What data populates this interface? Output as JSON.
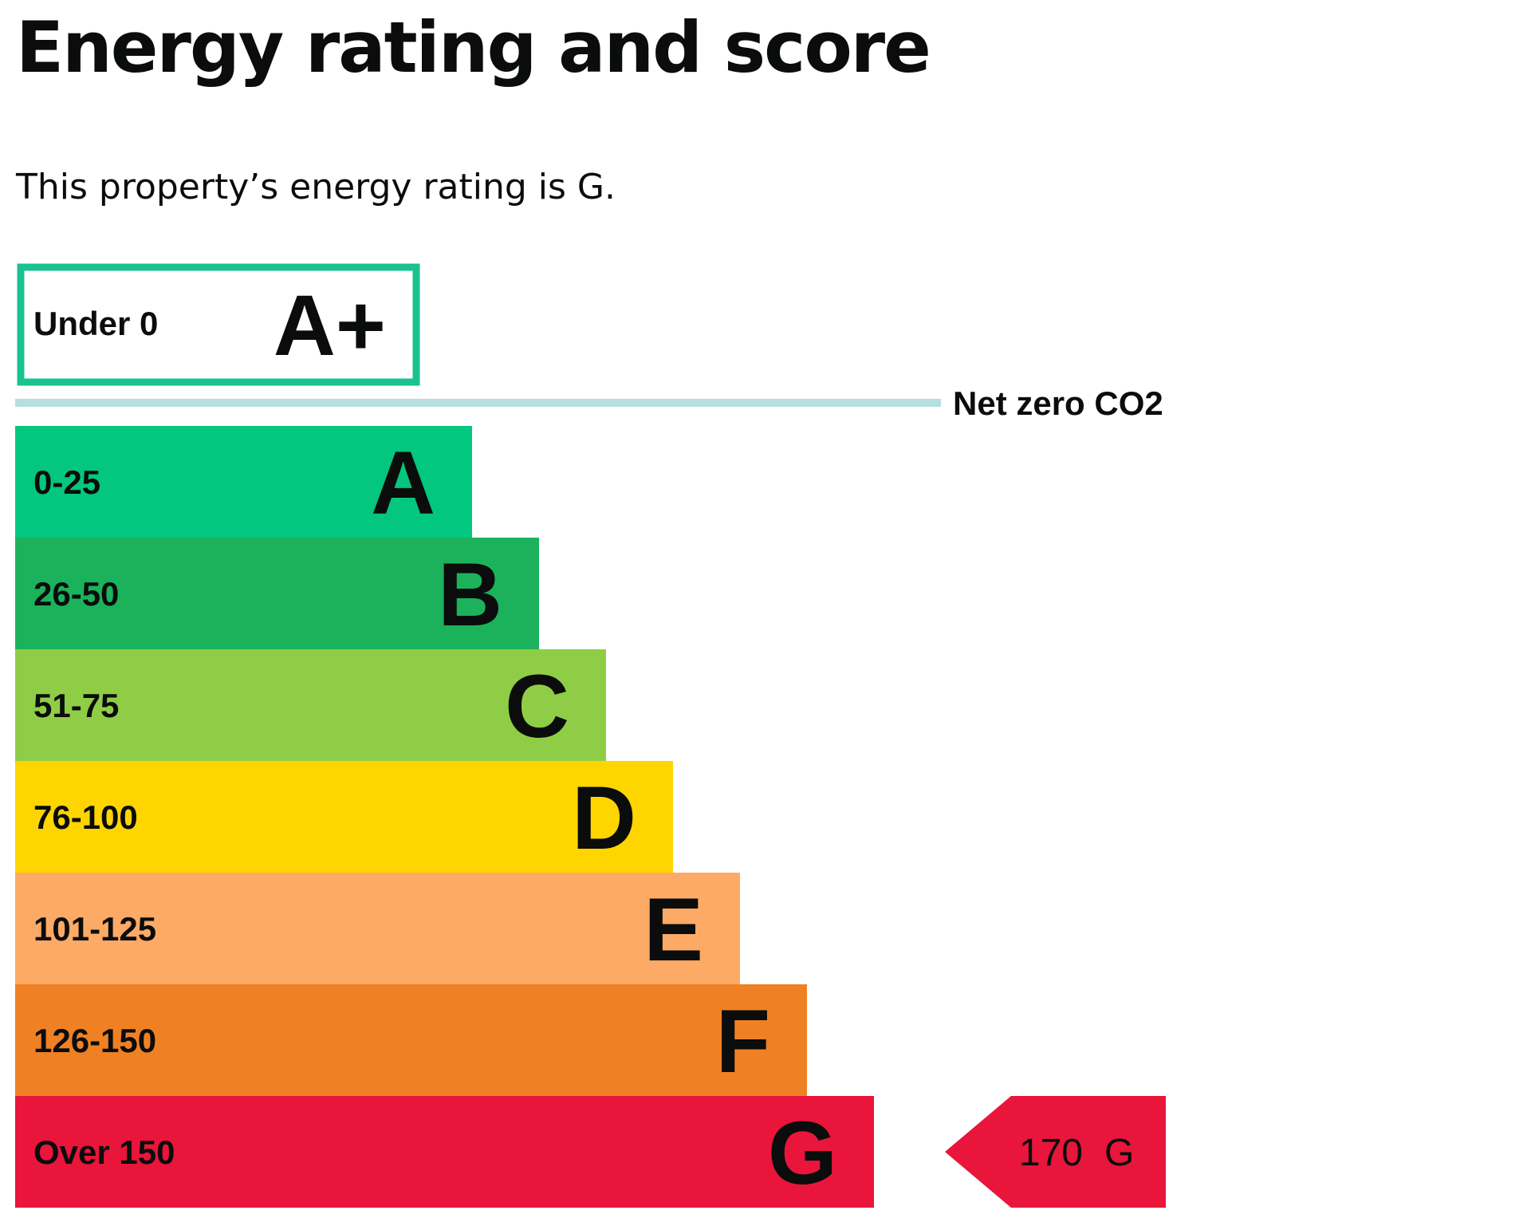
{
  "page": {
    "title": "Energy rating and score",
    "subtitle": "This property’s energy rating is G."
  },
  "chart_data": {
    "type": "bar",
    "top_band": {
      "range": "Under 0",
      "letter": "A+",
      "color": "#19c28e"
    },
    "net_zero_label": "Net zero CO2",
    "net_zero_line_color": "#b6dfe2",
    "bands": [
      {
        "range": "0-25",
        "letter": "A",
        "color": "#03c67f"
      },
      {
        "range": "26-50",
        "letter": "B",
        "color": "#1bb25b"
      },
      {
        "range": "51-75",
        "letter": "C",
        "color": "#8fcd46"
      },
      {
        "range": "76-100",
        "letter": "D",
        "color": "#ffd500"
      },
      {
        "range": "101-125",
        "letter": "E",
        "color": "#fcaa65"
      },
      {
        "range": "126-150",
        "letter": "F",
        "color": "#ef8023"
      },
      {
        "range": "Over 150",
        "letter": "G",
        "color": "#e9153b"
      }
    ],
    "current": {
      "score": 170,
      "score_text": "170",
      "letter": "G",
      "band_index": 6,
      "color": "#e9153b"
    }
  }
}
